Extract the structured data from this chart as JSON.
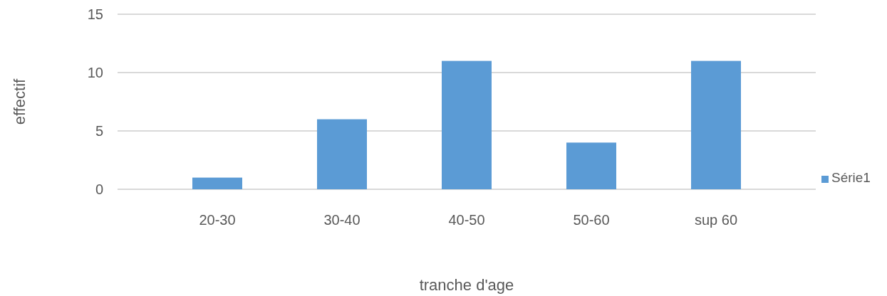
{
  "chart_data": {
    "type": "bar",
    "xlabel": "tranche d'age",
    "ylabel": "effectif",
    "categories": [
      "20-30",
      "30-40",
      "40-50",
      "50-60",
      "sup 60"
    ],
    "series": [
      {
        "name": "Série1",
        "color": "#5b9bd5",
        "values": [
          1,
          6,
          11,
          4,
          11
        ]
      }
    ],
    "ylim": [
      0,
      15
    ],
    "yticks": [
      0,
      5,
      10,
      15
    ],
    "grid": "y",
    "legend": "right"
  }
}
